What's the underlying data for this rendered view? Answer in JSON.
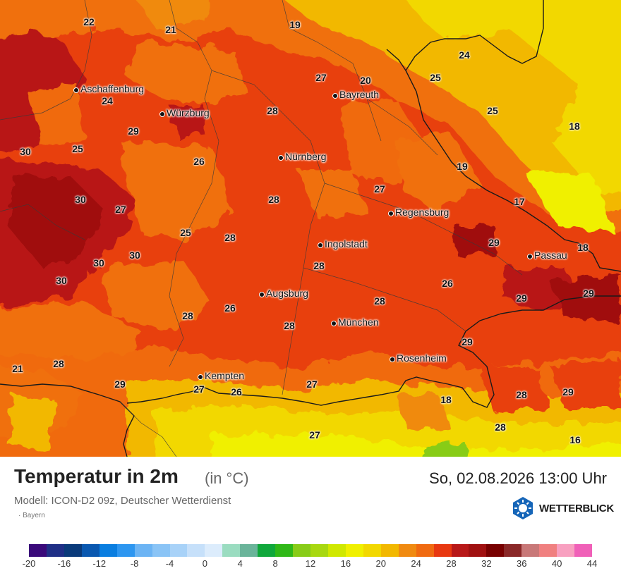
{
  "title": "Temperatur in 2m",
  "unit": "(in °C)",
  "datetime": "So, 02.08.2026 13:00 Uhr",
  "model": "Modell: ICON-D2 09z, Deutscher Wetterdienst",
  "region": "· Bayern",
  "brand": "WETTERBLICK",
  "cities": [
    {
      "name": "Aschaffenburg"
    },
    {
      "name": "Würzburg"
    },
    {
      "name": "Bayreuth"
    },
    {
      "name": "Nürnberg"
    },
    {
      "name": "Regensburg"
    },
    {
      "name": "Ingolstadt"
    },
    {
      "name": "Passau"
    },
    {
      "name": "Augsburg"
    },
    {
      "name": "München"
    },
    {
      "name": "Rosenheim"
    },
    {
      "name": "Kempten"
    }
  ],
  "temperatures": [
    "22",
    "21",
    "19",
    "24",
    "27",
    "20",
    "25",
    "24",
    "29",
    "28",
    "25",
    "30",
    "25",
    "26",
    "18",
    "19",
    "27",
    "30",
    "27",
    "28",
    "17",
    "25",
    "28",
    "29",
    "30",
    "30",
    "28",
    "18",
    "30",
    "26",
    "28",
    "29",
    "26",
    "28",
    "28",
    "29",
    "29",
    "28",
    "29",
    "26",
    "27",
    "27",
    "18",
    "28",
    "29",
    "27",
    "28",
    "16",
    "21"
  ],
  "scale": {
    "ticks": [
      "-20",
      "-16",
      "-12",
      "-8",
      "-4",
      "0",
      "4",
      "8",
      "12",
      "16",
      "20",
      "24",
      "28",
      "32",
      "36",
      "40",
      "44"
    ],
    "colors": [
      "#3a0a7a",
      "#1f2f86",
      "#0a3a7a",
      "#0a58b0",
      "#0a7ee0",
      "#2d96f0",
      "#6cb4f4",
      "#8ac4f6",
      "#a8d2f8",
      "#c6e0fa",
      "#dcecfc",
      "#9adcc0",
      "#6ab49a",
      "#10a83c",
      "#30b818",
      "#88cc18",
      "#a8d810",
      "#d0e800",
      "#f0f000",
      "#f2d800",
      "#f2b800",
      "#f08a10",
      "#f06a10",
      "#e83810",
      "#b81818",
      "#a01010",
      "#780000",
      "#8a2828",
      "#c87878",
      "#f08080",
      "#f8a0c0",
      "#f060b8"
    ]
  }
}
